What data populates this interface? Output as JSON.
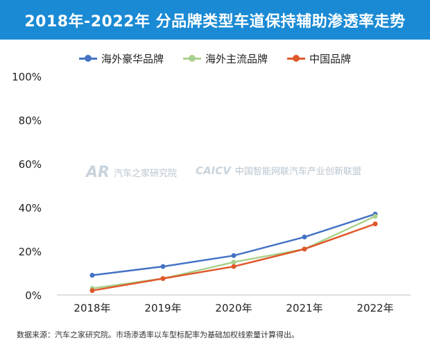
{
  "header": {
    "title": "2018年-2022年 分品牌类型车道保持辅助渗透率走势"
  },
  "watermarks": {
    "left_logo": "AR",
    "left_text": "汽车之家研究院",
    "right_logo": "CAICV",
    "right_text": "中国智能网联汽车产业创新联盟"
  },
  "footnote": "数据来源：汽车之家研究院。市场渗透率以车型标配率为基础加权线索量计算得出。",
  "colors": {
    "title_bg": "#1a8ad4",
    "series1": "#4472c4",
    "series2": "#a9d18e",
    "series3": "#e0572a"
  },
  "chart_data": {
    "type": "line",
    "title": "2018年-2022年 分品牌类型车道保持辅助渗透率走势",
    "categories": [
      "2018年",
      "2019年",
      "2020年",
      "2021年",
      "2022年"
    ],
    "y_ticks": [
      "0%",
      "20%",
      "40%",
      "60%",
      "80%",
      "100%"
    ],
    "ylim": [
      0,
      100
    ],
    "grid": false,
    "legend_position": "top",
    "series": [
      {
        "name": "海外豪华品牌",
        "color": "#4472c4",
        "values": [
          9,
          13,
          18,
          26.5,
          37
        ]
      },
      {
        "name": "海外主流品牌",
        "color": "#a9d18e",
        "values": [
          3,
          7.5,
          15,
          21,
          36
        ]
      },
      {
        "name": "中国品牌",
        "color": "#e0572a",
        "values": [
          2,
          7.5,
          13,
          21,
          32.5
        ]
      }
    ]
  }
}
